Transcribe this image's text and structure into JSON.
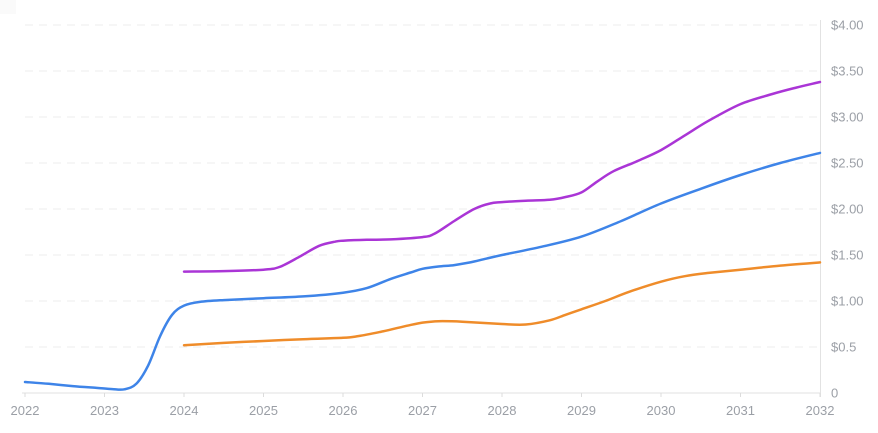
{
  "chart_data": {
    "type": "line",
    "title": "",
    "legend": "none",
    "grid": "horizontal, faint dashed",
    "x_axis": {
      "min": 2022,
      "max": 2032,
      "tick_labels": [
        "2022",
        "2023",
        "2024",
        "2025",
        "2026",
        "2027",
        "2028",
        "2029",
        "2030",
        "2031",
        "2032"
      ]
    },
    "y_axis": {
      "position": "right",
      "min": 0,
      "max": 4,
      "step": 0.5,
      "tick_labels": [
        {
          "value": 4.0,
          "label": "$4.00"
        },
        {
          "value": 3.5,
          "label": "$3.50"
        },
        {
          "value": 3.0,
          "label": "$3.00"
        },
        {
          "value": 2.5,
          "label": "$2.50"
        },
        {
          "value": 2.0,
          "label": "$2.00"
        },
        {
          "value": 1.5,
          "label": "$1.50"
        },
        {
          "value": 1.0,
          "label": "$1.00"
        },
        {
          "value": 0.5,
          "label": "$0.5"
        },
        {
          "value": 0,
          "label": "0"
        }
      ]
    },
    "series": [
      {
        "name": "blue-line",
        "color": "#3e84e8",
        "points": [
          [
            2022.0,
            0.12
          ],
          [
            2022.3,
            0.1
          ],
          [
            2022.6,
            0.075
          ],
          [
            2022.9,
            0.055
          ],
          [
            2023.1,
            0.042
          ],
          [
            2023.25,
            0.04
          ],
          [
            2023.4,
            0.1
          ],
          [
            2023.55,
            0.3
          ],
          [
            2023.7,
            0.62
          ],
          [
            2023.85,
            0.85
          ],
          [
            2024.0,
            0.95
          ],
          [
            2024.2,
            0.99
          ],
          [
            2024.5,
            1.01
          ],
          [
            2025.0,
            1.03
          ],
          [
            2025.5,
            1.05
          ],
          [
            2026.0,
            1.09
          ],
          [
            2026.3,
            1.14
          ],
          [
            2026.6,
            1.24
          ],
          [
            2026.85,
            1.31
          ],
          [
            2027.0,
            1.35
          ],
          [
            2027.2,
            1.375
          ],
          [
            2027.4,
            1.39
          ],
          [
            2027.6,
            1.42
          ],
          [
            2027.8,
            1.46
          ],
          [
            2028.0,
            1.5
          ],
          [
            2028.5,
            1.59
          ],
          [
            2029.0,
            1.7
          ],
          [
            2029.5,
            1.87
          ],
          [
            2030.0,
            2.06
          ],
          [
            2030.5,
            2.22
          ],
          [
            2031.0,
            2.37
          ],
          [
            2031.5,
            2.5
          ],
          [
            2032.0,
            2.61
          ]
        ]
      },
      {
        "name": "orange-line",
        "color": "#ef8c2a",
        "points": [
          [
            2024.0,
            0.52
          ],
          [
            2024.5,
            0.545
          ],
          [
            2025.0,
            0.565
          ],
          [
            2025.5,
            0.585
          ],
          [
            2026.0,
            0.6
          ],
          [
            2026.2,
            0.62
          ],
          [
            2026.5,
            0.67
          ],
          [
            2026.8,
            0.73
          ],
          [
            2027.0,
            0.765
          ],
          [
            2027.2,
            0.78
          ],
          [
            2027.5,
            0.775
          ],
          [
            2028.0,
            0.75
          ],
          [
            2028.3,
            0.745
          ],
          [
            2028.6,
            0.79
          ],
          [
            2028.8,
            0.85
          ],
          [
            2029.0,
            0.91
          ],
          [
            2029.3,
            1.0
          ],
          [
            2029.6,
            1.1
          ],
          [
            2030.0,
            1.21
          ],
          [
            2030.3,
            1.27
          ],
          [
            2030.6,
            1.305
          ],
          [
            2031.0,
            1.34
          ],
          [
            2031.5,
            1.385
          ],
          [
            2032.0,
            1.42
          ]
        ]
      },
      {
        "name": "purple-line",
        "color": "#aa35d6",
        "points": [
          [
            2024.0,
            1.32
          ],
          [
            2024.5,
            1.325
          ],
          [
            2025.0,
            1.34
          ],
          [
            2025.2,
            1.37
          ],
          [
            2025.45,
            1.48
          ],
          [
            2025.7,
            1.6
          ],
          [
            2025.9,
            1.645
          ],
          [
            2026.0,
            1.655
          ],
          [
            2026.3,
            1.665
          ],
          [
            2026.6,
            1.67
          ],
          [
            2027.0,
            1.695
          ],
          [
            2027.15,
            1.73
          ],
          [
            2027.4,
            1.87
          ],
          [
            2027.65,
            2.0
          ],
          [
            2027.85,
            2.06
          ],
          [
            2028.0,
            2.075
          ],
          [
            2028.3,
            2.09
          ],
          [
            2028.6,
            2.1
          ],
          [
            2028.8,
            2.13
          ],
          [
            2029.0,
            2.18
          ],
          [
            2029.2,
            2.3
          ],
          [
            2029.4,
            2.41
          ],
          [
            2029.7,
            2.52
          ],
          [
            2030.0,
            2.64
          ],
          [
            2030.3,
            2.8
          ],
          [
            2030.6,
            2.96
          ],
          [
            2031.0,
            3.14
          ],
          [
            2031.4,
            3.25
          ],
          [
            2031.7,
            3.32
          ],
          [
            2032.0,
            3.38
          ]
        ]
      }
    ],
    "styles": {
      "background": "#ffffff",
      "grid_color": "#ededed",
      "axis_color": "#e2e2e2",
      "tick_color": "#dcdcdc",
      "label_color": "#9b9fa6"
    }
  }
}
